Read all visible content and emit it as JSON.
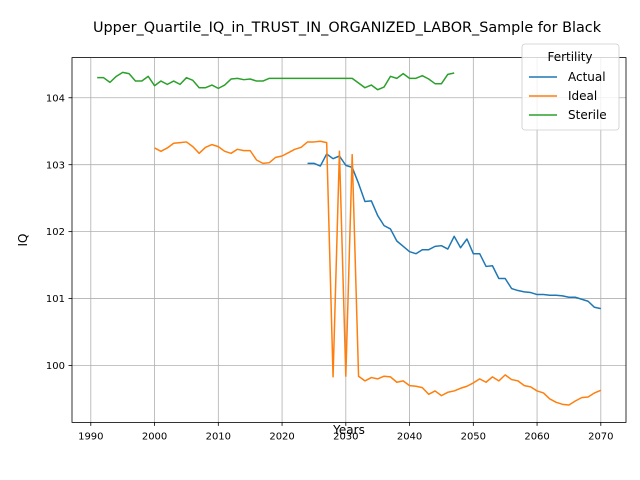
{
  "chart_data": {
    "type": "line",
    "title": "Upper_Quartile_IQ_in_TRUST_IN_ORGANIZED_LABOR_Sample for Black",
    "xlabel": "Years",
    "ylabel": "IQ",
    "xlim": [
      1987.05,
      2073.95
    ],
    "ylim": [
      99.15,
      104.6
    ],
    "xticks": [
      1990,
      2000,
      2010,
      2020,
      2030,
      2040,
      2050,
      2060,
      2070
    ],
    "yticks": [
      100,
      101,
      102,
      103,
      104
    ],
    "grid": true,
    "legend": {
      "title": "Fertility",
      "placement": "top-right"
    },
    "series": [
      {
        "name": "Actual",
        "color": "#1f77b4",
        "x": [
          2024,
          2025,
          2026,
          2027,
          2028,
          2029,
          2030,
          2031,
          2032,
          2033,
          2034,
          2035,
          2036,
          2037,
          2038,
          2039,
          2040,
          2041,
          2042,
          2043,
          2044,
          2045,
          2046,
          2047,
          2048,
          2049,
          2050,
          2051,
          2052,
          2053,
          2054,
          2055,
          2056,
          2057,
          2058,
          2059,
          2060,
          2061,
          2062,
          2063,
          2064,
          2065,
          2066,
          2067,
          2068,
          2069,
          2070
        ],
        "y": [
          103.02,
          103.02,
          102.98,
          103.16,
          103.09,
          103.13,
          102.99,
          102.96,
          102.72,
          102.45,
          102.46,
          102.24,
          102.09,
          102.04,
          101.86,
          101.78,
          101.7,
          101.67,
          101.73,
          101.73,
          101.78,
          101.79,
          101.74,
          101.93,
          101.76,
          101.89,
          101.67,
          101.67,
          101.48,
          101.49,
          101.3,
          101.3,
          101.15,
          101.12,
          101.1,
          101.09,
          101.06,
          101.06,
          101.05,
          101.05,
          101.04,
          101.02,
          101.02,
          100.99,
          100.96,
          100.87,
          100.85
        ]
      },
      {
        "name": "Ideal",
        "color": "#ff7f0e",
        "x": [
          2000,
          2001,
          2002,
          2003,
          2004,
          2005,
          2006,
          2007,
          2008,
          2009,
          2010,
          2011,
          2012,
          2013,
          2014,
          2015,
          2016,
          2017,
          2018,
          2019,
          2020,
          2021,
          2022,
          2023,
          2024,
          2025,
          2026,
          2027,
          2028,
          2029,
          2030,
          2031,
          2032,
          2033,
          2034,
          2035,
          2036,
          2037,
          2038,
          2039,
          2040,
          2041,
          2042,
          2043,
          2044,
          2045,
          2046,
          2047,
          2048,
          2049,
          2050,
          2051,
          2052,
          2053,
          2054,
          2055,
          2056,
          2057,
          2058,
          2059,
          2060,
          2061,
          2062,
          2063,
          2064,
          2065,
          2066,
          2067,
          2068,
          2069,
          2070
        ],
        "y": [
          103.25,
          103.2,
          103.25,
          103.32,
          103.33,
          103.34,
          103.27,
          103.17,
          103.26,
          103.3,
          103.27,
          103.2,
          103.17,
          103.23,
          103.21,
          103.21,
          103.07,
          103.02,
          103.03,
          103.11,
          103.13,
          103.18,
          103.23,
          103.26,
          103.34,
          103.34,
          103.35,
          103.33,
          99.83,
          103.2,
          99.84,
          103.15,
          99.84,
          99.77,
          99.82,
          99.8,
          99.84,
          99.83,
          99.75,
          99.77,
          99.7,
          99.69,
          99.67,
          99.57,
          99.62,
          99.55,
          99.6,
          99.62,
          99.66,
          99.69,
          99.74,
          99.8,
          99.75,
          99.83,
          99.77,
          99.86,
          99.79,
          99.77,
          99.7,
          99.68,
          99.62,
          99.59,
          99.5,
          99.45,
          99.42,
          99.41,
          99.47,
          99.52,
          99.53,
          99.59,
          99.63
        ]
      },
      {
        "name": "Sterile",
        "color": "#2ca02c",
        "x": [
          1991,
          1992,
          1993,
          1994,
          1995,
          1996,
          1997,
          1998,
          1999,
          2000,
          2001,
          2002,
          2003,
          2004,
          2005,
          2006,
          2007,
          2008,
          2009,
          2010,
          2011,
          2012,
          2013,
          2014,
          2015,
          2016,
          2017,
          2018,
          2019,
          2020,
          2021,
          2022,
          2023,
          2024,
          2025,
          2026,
          2027,
          2028,
          2029,
          2030,
          2031,
          2032,
          2033,
          2034,
          2035,
          2036,
          2037,
          2038,
          2039,
          2040,
          2041,
          2042,
          2043,
          2044,
          2045,
          2046,
          2047
        ],
        "y": [
          104.3,
          104.3,
          104.23,
          104.32,
          104.38,
          104.36,
          104.25,
          104.25,
          104.32,
          104.18,
          104.25,
          104.2,
          104.25,
          104.2,
          104.3,
          104.26,
          104.15,
          104.15,
          104.19,
          104.14,
          104.19,
          104.28,
          104.29,
          104.27,
          104.28,
          104.25,
          104.25,
          104.29,
          104.29,
          104.29,
          104.29,
          104.29,
          104.29,
          104.29,
          104.29,
          104.29,
          104.29,
          104.29,
          104.29,
          104.29,
          104.29,
          104.22,
          104.15,
          104.19,
          104.12,
          104.16,
          104.32,
          104.29,
          104.36,
          104.29,
          104.29,
          104.33,
          104.28,
          104.21,
          104.21,
          104.35,
          104.37
        ]
      }
    ]
  }
}
